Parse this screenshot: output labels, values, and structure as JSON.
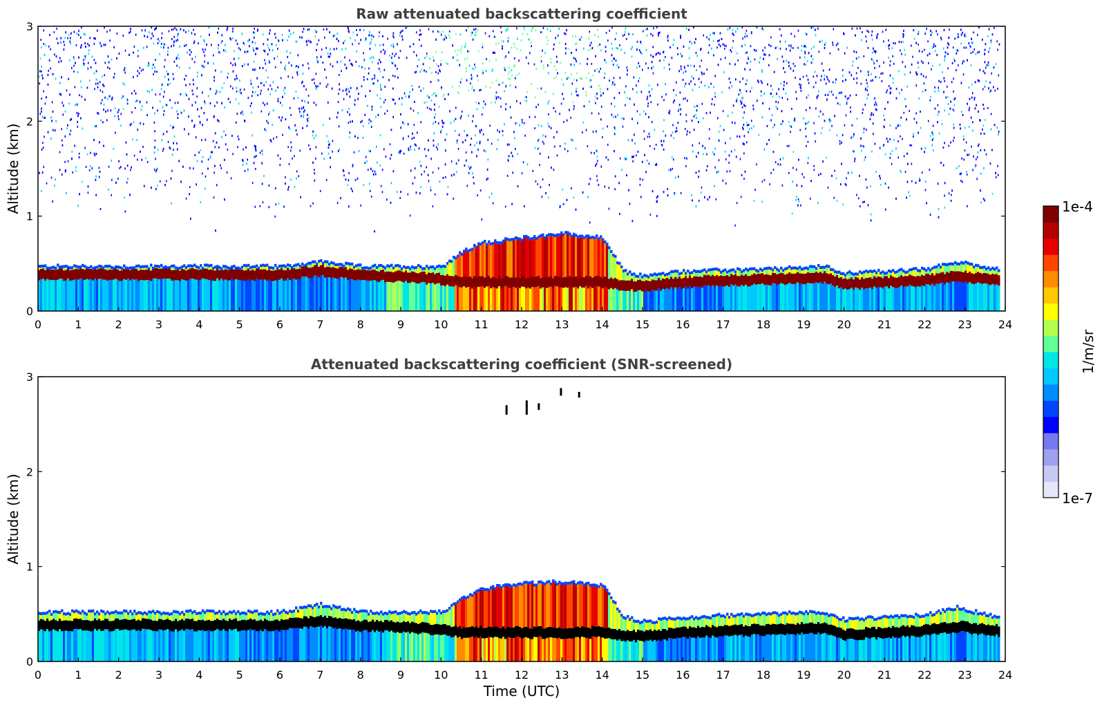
{
  "chart_data": [
    {
      "type": "heatmap",
      "title": "Raw attenuated backscattering coefficient",
      "xlabel": "",
      "ylabel": "Altitude (km)",
      "xlim": [
        0,
        24
      ],
      "ylim": [
        0,
        3
      ],
      "xticks": [
        "0",
        "1",
        "2",
        "3",
        "4",
        "5",
        "6",
        "7",
        "8",
        "9",
        "10",
        "11",
        "12",
        "13",
        "14",
        "15",
        "16",
        "17",
        "18",
        "19",
        "20",
        "21",
        "22",
        "23",
        "24"
      ],
      "yticks": [
        "0",
        "1",
        "2",
        "3"
      ],
      "x_times_utc": [
        0,
        2,
        4,
        6,
        7,
        8,
        9,
        10,
        10.5,
        11,
        12,
        13,
        14,
        14.5,
        15,
        16,
        18,
        19.5,
        20,
        21,
        22,
        22.8,
        23.8
      ],
      "layer_top_km": [
        0.45,
        0.45,
        0.45,
        0.45,
        0.5,
        0.45,
        0.45,
        0.45,
        0.6,
        0.7,
        0.75,
        0.8,
        0.75,
        0.4,
        0.35,
        0.4,
        0.42,
        0.45,
        0.38,
        0.4,
        0.42,
        0.5,
        0.42
      ],
      "peak_altitude_km": [
        0.38,
        0.38,
        0.38,
        0.38,
        0.42,
        0.37,
        0.36,
        0.33,
        0.3,
        0.3,
        0.3,
        0.3,
        0.3,
        0.27,
        0.26,
        0.3,
        0.33,
        0.35,
        0.28,
        0.3,
        0.32,
        0.36,
        0.32
      ],
      "raw_noise_above_layer": true,
      "grid": false
    },
    {
      "type": "heatmap",
      "title": "Attenuated backscattering coefficient (SNR-screened)",
      "xlabel": "Time (UTC)",
      "ylabel": "Altitude (km)",
      "xlim": [
        0,
        24
      ],
      "ylim": [
        0,
        3
      ],
      "xticks": [
        "0",
        "1",
        "2",
        "3",
        "4",
        "5",
        "6",
        "7",
        "8",
        "9",
        "10",
        "11",
        "12",
        "13",
        "14",
        "15",
        "16",
        "17",
        "18",
        "19",
        "20",
        "21",
        "22",
        "23",
        "24"
      ],
      "yticks": [
        "0",
        "1",
        "2",
        "3"
      ],
      "x_times_utc": [
        0,
        2,
        4,
        6,
        7,
        8,
        9,
        10,
        10.5,
        11,
        12,
        13,
        14,
        14.5,
        15,
        16,
        18,
        19.5,
        20,
        21,
        22,
        22.8,
        23.8
      ],
      "layer_top_km": [
        0.5,
        0.5,
        0.5,
        0.5,
        0.58,
        0.5,
        0.5,
        0.5,
        0.65,
        0.75,
        0.8,
        0.82,
        0.78,
        0.45,
        0.4,
        0.45,
        0.48,
        0.5,
        0.42,
        0.45,
        0.47,
        0.55,
        0.45
      ],
      "peak_altitude_km": [
        0.38,
        0.38,
        0.38,
        0.38,
        0.42,
        0.37,
        0.36,
        0.33,
        0.3,
        0.3,
        0.3,
        0.3,
        0.3,
        0.27,
        0.26,
        0.3,
        0.33,
        0.35,
        0.28,
        0.3,
        0.32,
        0.36,
        0.32
      ],
      "isolated_features": [
        {
          "time_utc": 11.6,
          "altitude_km": [
            2.6,
            2.7
          ]
        },
        {
          "time_utc": 12.1,
          "altitude_km": [
            2.6,
            2.75
          ]
        },
        {
          "time_utc": 12.4,
          "altitude_km": [
            2.65,
            2.72
          ]
        },
        {
          "time_utc": 12.95,
          "altitude_km": [
            2.8,
            2.88
          ]
        },
        {
          "time_utc": 13.4,
          "altitude_km": [
            2.78,
            2.84
          ]
        }
      ],
      "grid": false
    }
  ],
  "colorbar": {
    "label": "1/m/sr",
    "max_label": "1e-4",
    "min_label": "1e-7",
    "scale": "log",
    "colormap": "jet",
    "colors": [
      "#e6e6fa",
      "#c8c8f5",
      "#a0a0f0",
      "#7878f0",
      "#0000ff",
      "#0046ff",
      "#008cff",
      "#00c8ff",
      "#00e6e6",
      "#64ff96",
      "#b4ff50",
      "#ffff00",
      "#ffc800",
      "#ff8c00",
      "#ff4600",
      "#e60000",
      "#b40000",
      "#800000"
    ]
  }
}
